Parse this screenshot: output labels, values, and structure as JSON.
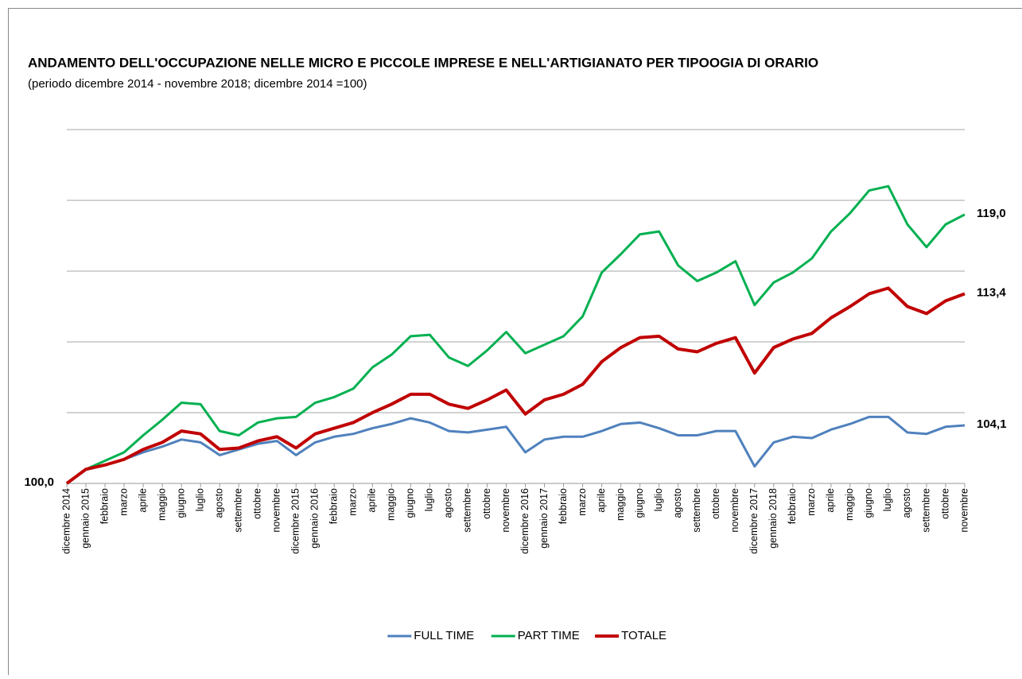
{
  "chart_data": {
    "type": "line",
    "title": "ANDAMENTO DELL'OCCUPAZIONE NELLE MICRO E PICCOLE IMPRESE E NELL'ARTIGIANATO PER TIPOOGIA DI ORARIO",
    "subtitle": "(periodo dicembre 2014 - novembre 2018; dicembre 2014 =100)",
    "categories": [
      "dicembre 2014",
      "gennaio 2015",
      "febbraio",
      "marzo",
      "aprile",
      "maggio",
      "giugno",
      "luglio",
      "agosto",
      "settembre",
      "ottobre",
      "novembre",
      "dicembre 2015",
      "gennaio 2016",
      "febbraio",
      "marzo",
      "aprile",
      "maggio",
      "giugno",
      "luglio",
      "agosto",
      "settembre",
      "ottobre",
      "novembre",
      "dicembre 2016",
      "gennaio 2017",
      "febbraio",
      "marzo",
      "aprile",
      "maggio",
      "giugno",
      "luglio",
      "agosto",
      "settembre",
      "ottobre",
      "novembre",
      "dicembre 2017",
      "gennaio 2018",
      "febbraio",
      "marzo",
      "aprile",
      "maggio",
      "giugno",
      "luglio",
      "agosto",
      "settembre",
      "ottobre",
      "novembre"
    ],
    "series": [
      {
        "name": "FULL TIME",
        "color": "#4f81bd",
        "values": [
          100,
          100.96,
          101.3,
          101.7,
          102.2,
          102.6,
          103.1,
          102.9,
          102.0,
          102.4,
          102.8,
          103.0,
          102.0,
          102.9,
          103.3,
          103.5,
          103.9,
          104.2,
          104.6,
          104.3,
          103.7,
          103.6,
          103.8,
          104.0,
          102.2,
          103.1,
          103.3,
          103.3,
          103.7,
          104.2,
          104.3,
          103.9,
          103.4,
          103.4,
          103.7,
          103.7,
          101.2,
          102.9,
          103.3,
          103.2,
          103.8,
          104.2,
          104.7,
          104.7,
          103.6,
          103.5,
          104.0,
          104.1
        ],
        "value_labels": [
          null,
          null,
          null,
          null,
          null,
          null,
          null,
          null,
          null,
          null,
          null,
          null,
          null,
          null,
          null,
          null,
          null,
          null,
          null,
          null,
          null,
          null,
          null,
          null,
          null,
          null,
          null,
          null,
          null,
          null,
          null,
          null,
          null,
          null,
          null,
          null,
          null,
          null,
          null,
          null,
          null,
          null,
          null,
          null,
          null,
          null,
          null,
          "104,1"
        ]
      },
      {
        "name": "PART TIME",
        "color": "#00b050",
        "values": [
          100,
          101.0,
          101.6,
          102.2,
          103.4,
          104.5,
          105.7,
          105.6,
          103.7,
          103.4,
          104.3,
          104.6,
          104.7,
          105.7,
          106.1,
          106.7,
          108.2,
          109.1,
          110.4,
          110.5,
          108.9,
          108.3,
          109.4,
          110.7,
          109.2,
          109.8,
          110.4,
          111.8,
          114.9,
          116.2,
          117.6,
          117.8,
          115.4,
          114.3,
          114.9,
          115.7,
          112.6,
          114.2,
          114.9,
          115.9,
          117.8,
          119.1,
          120.7,
          121.0,
          118.3,
          116.7,
          118.3,
          119.0
        ],
        "value_labels": [
          null,
          null,
          null,
          null,
          null,
          null,
          null,
          null,
          null,
          null,
          null,
          null,
          null,
          null,
          null,
          null,
          null,
          null,
          null,
          null,
          null,
          null,
          null,
          null,
          null,
          null,
          null,
          null,
          null,
          null,
          null,
          null,
          null,
          null,
          null,
          null,
          null,
          null,
          null,
          null,
          null,
          null,
          null,
          null,
          null,
          null,
          null,
          "119,0"
        ]
      },
      {
        "name": "TOTALE",
        "color": "#c00000",
        "values": [
          100,
          101.0,
          101.3,
          101.7,
          102.4,
          102.9,
          103.7,
          103.5,
          102.4,
          102.5,
          103.0,
          103.3,
          102.5,
          103.5,
          103.9,
          104.3,
          105.0,
          105.6,
          106.3,
          106.3,
          105.6,
          105.3,
          105.9,
          106.6,
          104.9,
          105.9,
          106.3,
          107.0,
          108.6,
          109.6,
          110.3,
          110.4,
          109.5,
          109.3,
          109.9,
          110.3,
          107.8,
          109.6,
          110.2,
          110.6,
          111.7,
          112.5,
          113.4,
          113.8,
          112.5,
          112.0,
          112.9,
          113.4
        ],
        "value_labels": [
          "100,0",
          null,
          null,
          null,
          null,
          null,
          null,
          null,
          null,
          null,
          null,
          null,
          null,
          null,
          null,
          null,
          null,
          null,
          null,
          null,
          null,
          null,
          null,
          null,
          null,
          null,
          null,
          null,
          null,
          null,
          null,
          null,
          null,
          null,
          null,
          null,
          null,
          null,
          null,
          null,
          null,
          null,
          null,
          null,
          null,
          null,
          null,
          "113,4"
        ]
      }
    ],
    "ylim": [
      100,
      125
    ],
    "yticks": [
      100,
      105,
      110,
      115,
      120,
      125
    ],
    "grid": true,
    "legend": "bottom"
  }
}
